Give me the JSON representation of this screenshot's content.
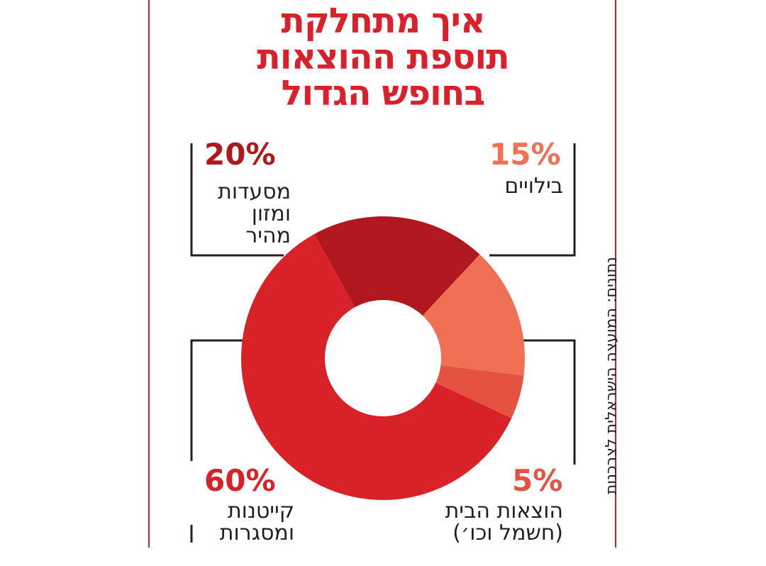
{
  "title": {
    "line1": "איך מתחלקת",
    "line2": "תוספת ההוצאות",
    "line3": "בחופש הגדול"
  },
  "source": "נתונים: המועצה הישראלית לצרכנות",
  "colors": {
    "frame": "#d0202a",
    "title": "#d8212a",
    "text": "#231f20",
    "connector": "#231f20"
  },
  "chart_data": {
    "type": "donut",
    "unit": "%",
    "slices": [
      {
        "label_lines": [
          "מסעדות",
          "ומזון",
          "מהיר"
        ],
        "value": 20,
        "value_label": "20%",
        "color": "#b0181e"
      },
      {
        "label_lines": [
          "בילויים"
        ],
        "value": 15,
        "value_label": "15%",
        "color": "#f07055"
      },
      {
        "label_lines": [
          "הוצאות הבית",
          "(חשמל וכו׳)"
        ],
        "value": 5,
        "value_label": "5%",
        "color": "#e5523f"
      },
      {
        "label_lines": [
          "קייטנות",
          "ומסגרות"
        ],
        "value": 60,
        "value_label": "60%",
        "color": "#d92128"
      }
    ]
  }
}
